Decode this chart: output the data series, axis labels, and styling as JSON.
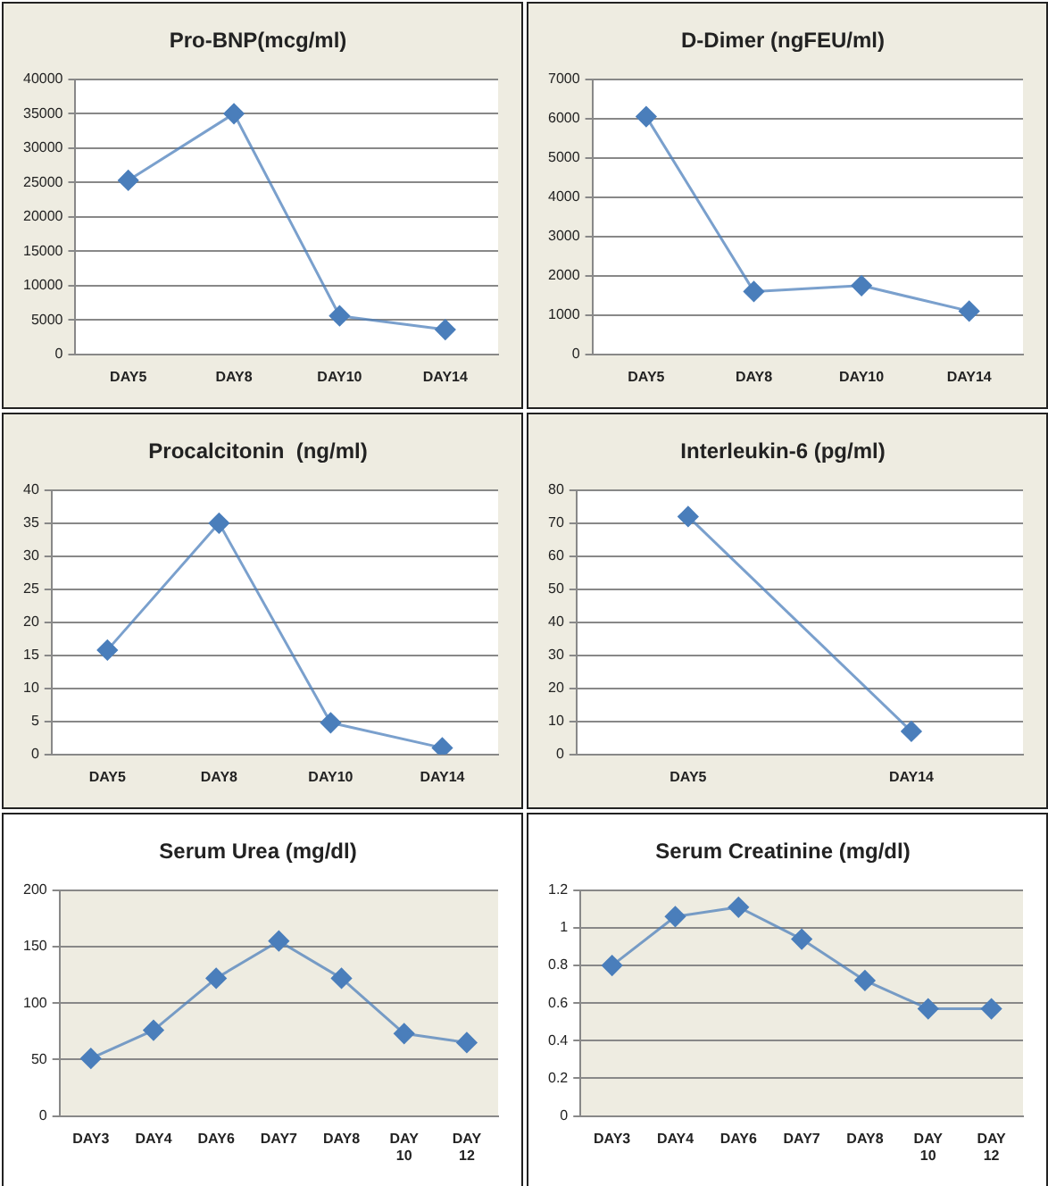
{
  "chart_data": [
    {
      "type": "line",
      "title": "Pro-BNP(mcg/ml)",
      "categories": [
        "DAY5",
        "DAY8",
        "DAY10",
        "DAY14"
      ],
      "series": [
        {
          "color": "#4a7ebb",
          "values": [
            25300,
            35000,
            5600,
            3600
          ]
        }
      ],
      "ylim": [
        0,
        40000
      ],
      "yticks": [
        0,
        5000,
        10000,
        15000,
        20000,
        25000,
        30000,
        35000,
        40000
      ],
      "grid": "y",
      "marker": "diamond",
      "legend": false
    },
    {
      "type": "line",
      "title": "D-Dimer (ngFEU/ml)",
      "categories": [
        "DAY5",
        "DAY8",
        "DAY10",
        "DAY14"
      ],
      "series": [
        {
          "color": "#4a7ebb",
          "values": [
            6050,
            1600,
            1750,
            1100
          ]
        }
      ],
      "ylim": [
        0,
        7000
      ],
      "yticks": [
        0,
        1000,
        2000,
        3000,
        4000,
        5000,
        6000,
        7000
      ],
      "grid": "y",
      "marker": "diamond",
      "legend": false
    },
    {
      "type": "line",
      "title": "Procalcitonin  (ng/ml)",
      "categories": [
        "DAY5",
        "DAY8",
        "DAY10",
        "DAY14"
      ],
      "series": [
        {
          "color": "#4a7ebb",
          "values": [
            15.8,
            35,
            4.8,
            1
          ]
        }
      ],
      "ylim": [
        0,
        40
      ],
      "yticks": [
        0,
        5,
        10,
        15,
        20,
        25,
        30,
        35,
        40
      ],
      "grid": "y",
      "marker": "diamond",
      "legend": false
    },
    {
      "type": "line",
      "title": "Interleukin-6 (pg/ml)",
      "categories": [
        "DAY5",
        "DAY14"
      ],
      "series": [
        {
          "color": "#4a7ebb",
          "values": [
            72,
            7
          ]
        }
      ],
      "ylim": [
        0,
        80
      ],
      "yticks": [
        0,
        10,
        20,
        30,
        40,
        50,
        60,
        70,
        80
      ],
      "grid": "y",
      "marker": "diamond",
      "legend": false
    },
    {
      "type": "line",
      "title": "Serum Urea (mg/dl)",
      "categories": [
        "DAY3",
        "DAY4",
        "DAY6",
        "DAY7",
        "DAY8",
        "DAY 10",
        "DAY 12"
      ],
      "series": [
        {
          "color": "#4a7ebb",
          "values": [
            51,
            76,
            122,
            155,
            122,
            73,
            65
          ]
        }
      ],
      "ylim": [
        0,
        200
      ],
      "yticks": [
        0,
        50,
        100,
        150,
        200
      ],
      "grid": "y",
      "marker": "diamond",
      "legend": false
    },
    {
      "type": "line",
      "title": "Serum Creatinine (mg/dl)",
      "categories": [
        "DAY3",
        "DAY4",
        "DAY6",
        "DAY7",
        "DAY8",
        "DAY 10",
        "DAY 12"
      ],
      "series": [
        {
          "color": "#4a7ebb",
          "values": [
            0.8,
            1.06,
            1.11,
            0.94,
            0.72,
            0.57,
            0.57
          ]
        }
      ],
      "ylim": [
        0,
        1.2
      ],
      "yticks": [
        0,
        0.2,
        0.4,
        0.6,
        0.8,
        1,
        1.2
      ],
      "grid": "y",
      "marker": "diamond",
      "legend": false
    }
  ]
}
